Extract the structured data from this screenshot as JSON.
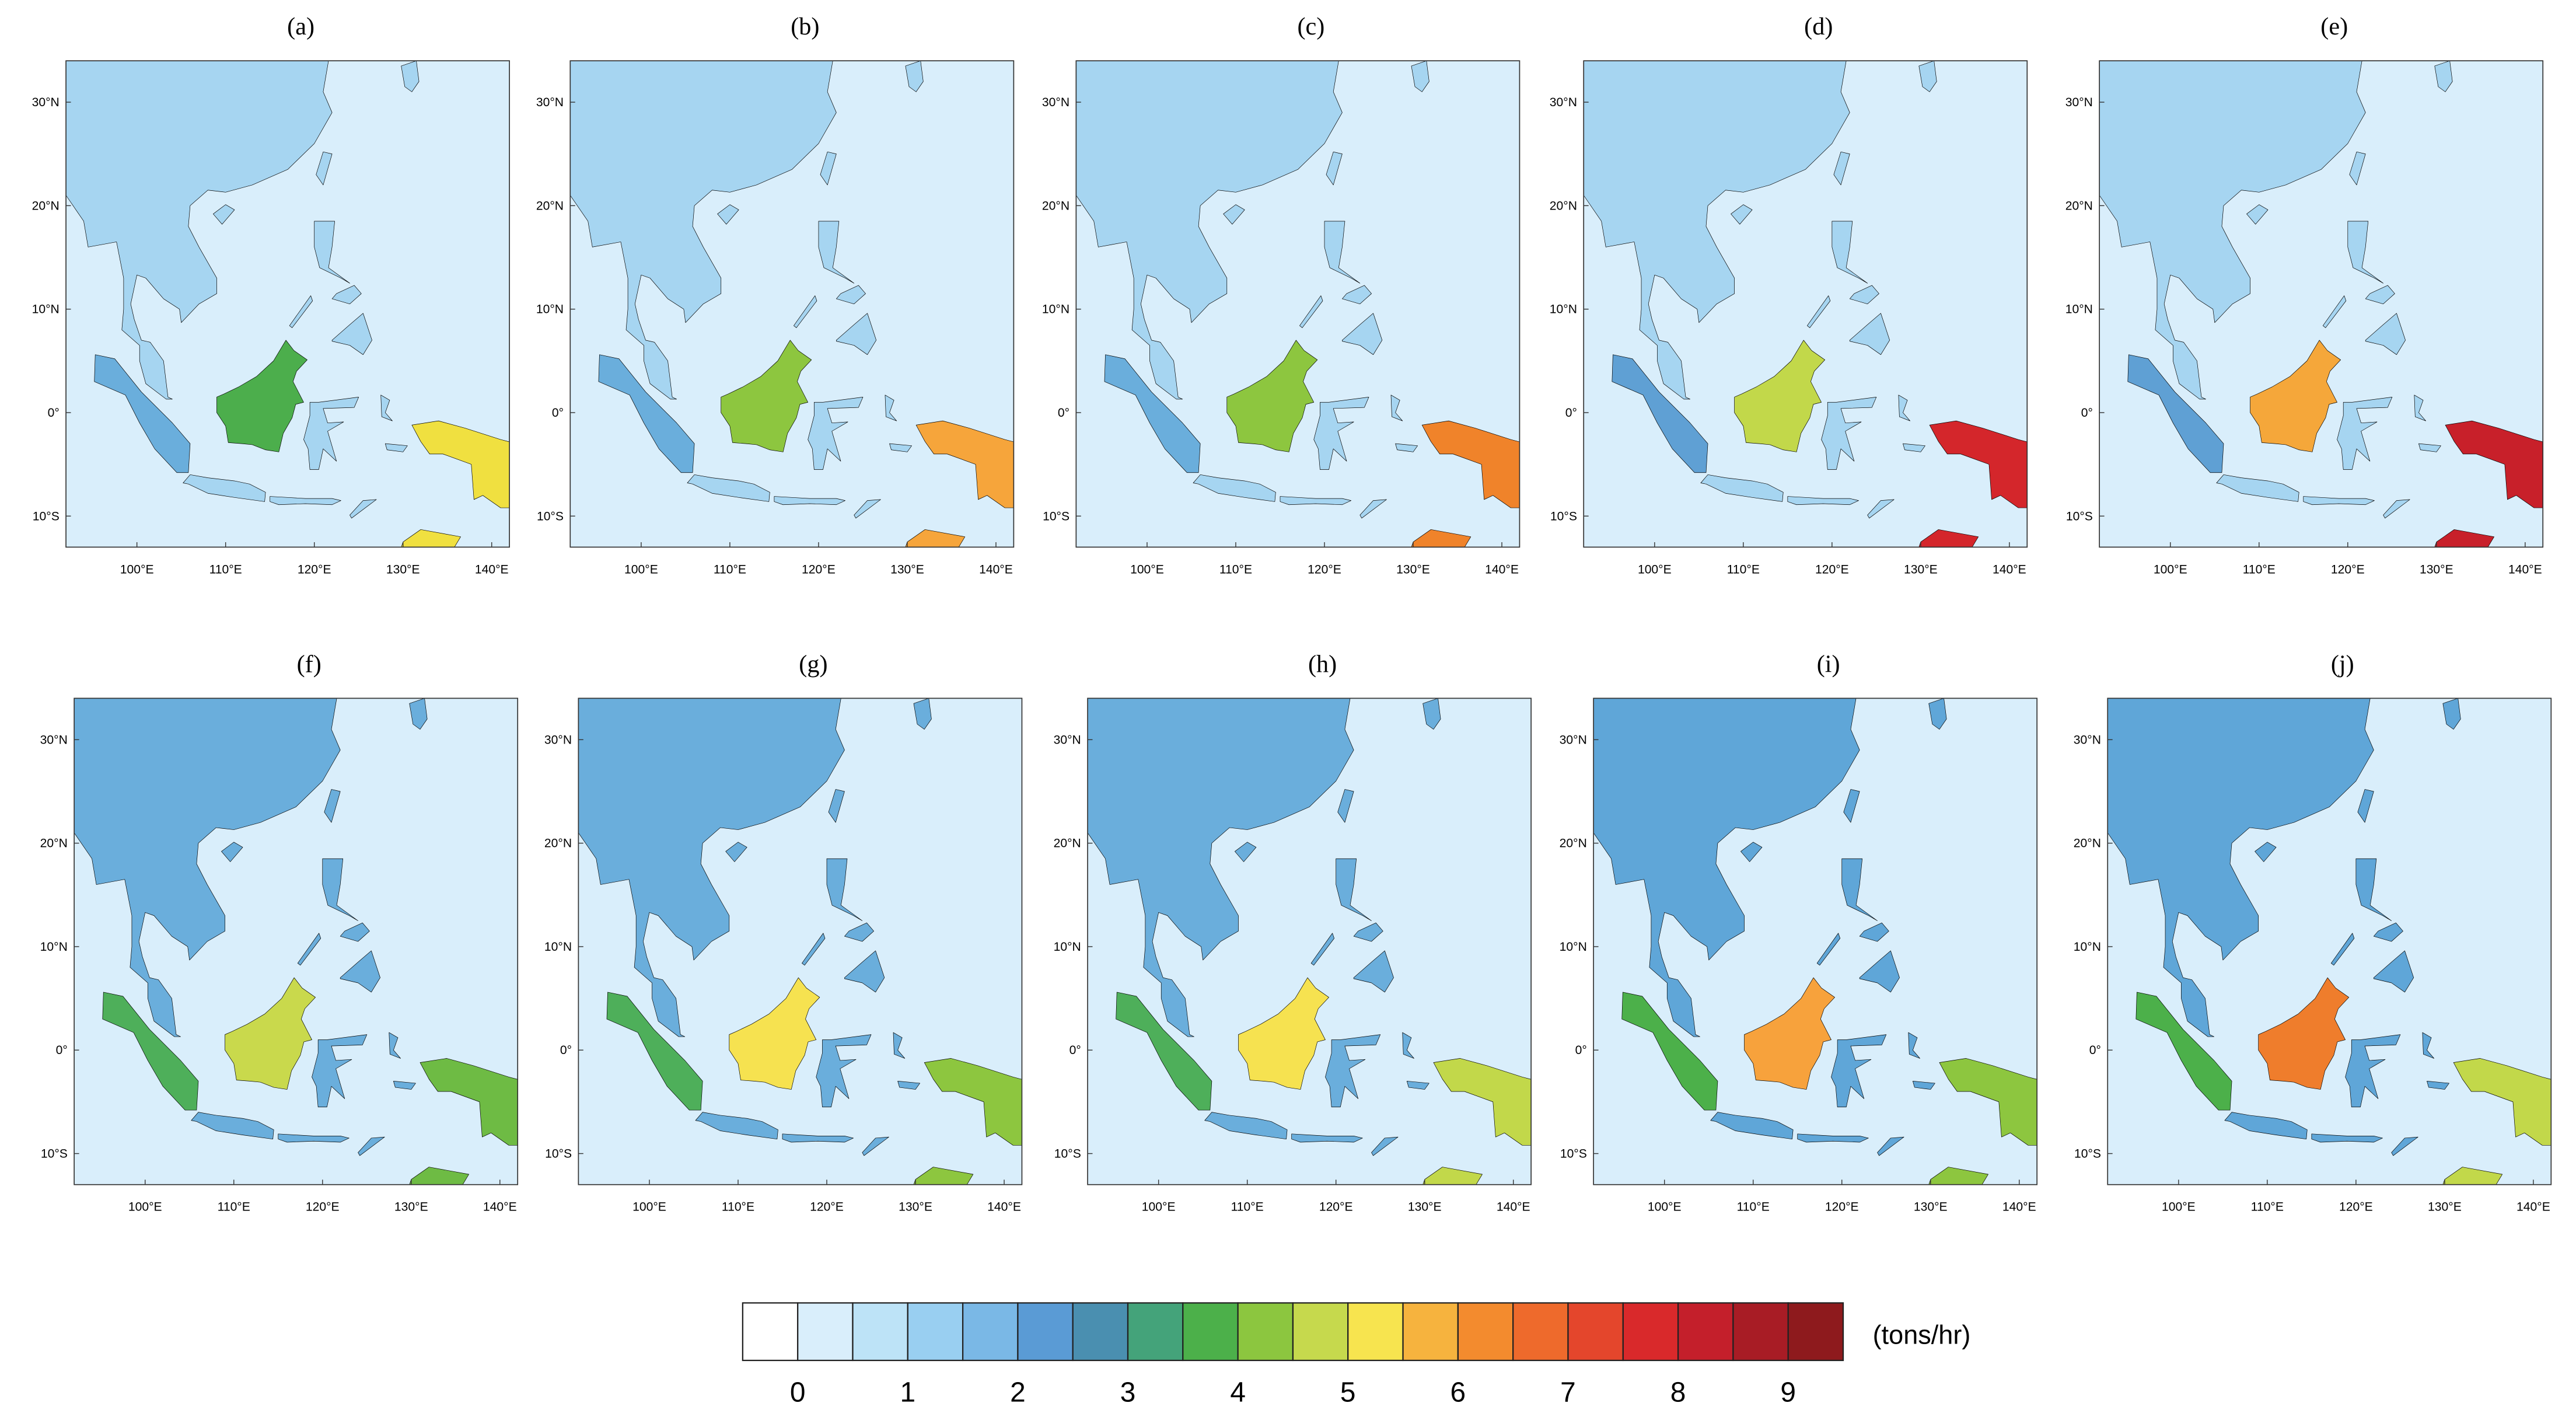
{
  "panels": [
    {
      "label": "(a)"
    },
    {
      "label": "(b)"
    },
    {
      "label": "(c)"
    },
    {
      "label": "(d)"
    },
    {
      "label": "(e)"
    },
    {
      "label": "(f)"
    },
    {
      "label": "(g)"
    },
    {
      "label": "(h)"
    },
    {
      "label": "(i)"
    },
    {
      "label": "(j)"
    }
  ],
  "map": {
    "xlim": [
      92,
      142
    ],
    "ylim": [
      -13,
      34
    ],
    "lat_ticks": [
      {
        "value": 30,
        "label": "30°N"
      },
      {
        "value": 20,
        "label": "20°N"
      },
      {
        "value": 10,
        "label": "10°N"
      },
      {
        "value": 0,
        "label": "0°"
      },
      {
        "value": -10,
        "label": "10°S"
      }
    ],
    "lon_ticks": [
      {
        "value": 100,
        "label": "100°E"
      },
      {
        "value": 110,
        "label": "110°E"
      },
      {
        "value": 120,
        "label": "120°E"
      },
      {
        "value": 130,
        "label": "130°E"
      },
      {
        "value": 140,
        "label": "140°E"
      }
    ]
  },
  "colorbar": {
    "colors": [
      "#ffffff",
      "#d9eefb",
      "#bde3f7",
      "#99cff1",
      "#7ab8e6",
      "#5a9bd5",
      "#4a8fb0",
      "#44a37a",
      "#4cb04a",
      "#8cc63f",
      "#c6d94d",
      "#f7e44f",
      "#f6b33e",
      "#f38b2e",
      "#ee6a2c",
      "#e4462c",
      "#d9292b",
      "#c41f2b",
      "#a81c25",
      "#8e1a1d"
    ],
    "labels": [
      0,
      1,
      2,
      3,
      4,
      5,
      6,
      7,
      8,
      9
    ],
    "unit": "(tons/hr)"
  }
}
